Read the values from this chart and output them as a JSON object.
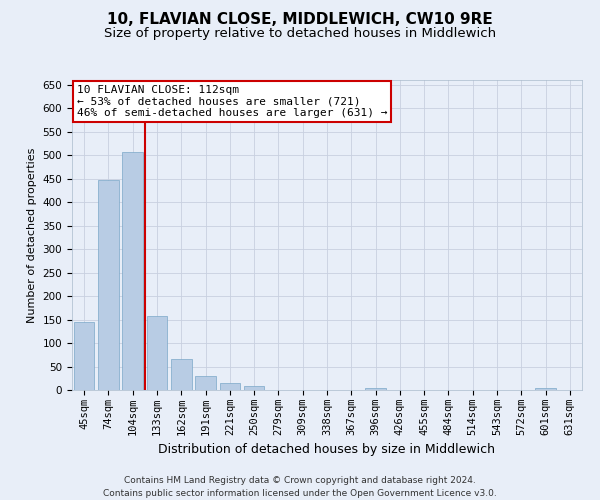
{
  "title": "10, FLAVIAN CLOSE, MIDDLEWICH, CW10 9RE",
  "subtitle": "Size of property relative to detached houses in Middlewich",
  "xlabel": "Distribution of detached houses by size in Middlewich",
  "ylabel": "Number of detached properties",
  "categories": [
    "45sqm",
    "74sqm",
    "104sqm",
    "133sqm",
    "162sqm",
    "191sqm",
    "221sqm",
    "250sqm",
    "279sqm",
    "309sqm",
    "338sqm",
    "367sqm",
    "396sqm",
    "426sqm",
    "455sqm",
    "484sqm",
    "514sqm",
    "543sqm",
    "572sqm",
    "601sqm",
    "631sqm"
  ],
  "values": [
    145,
    448,
    506,
    157,
    66,
    30,
    14,
    8,
    0,
    0,
    0,
    0,
    5,
    0,
    0,
    0,
    0,
    0,
    0,
    5,
    0
  ],
  "bar_color": "#b8cce4",
  "bar_edge_color": "#7ba7c9",
  "annotation_line1": "10 FLAVIAN CLOSE: 112sqm",
  "annotation_line2": "← 53% of detached houses are smaller (721)",
  "annotation_line3": "46% of semi-detached houses are larger (631) →",
  "annotation_box_color": "#ffffff",
  "annotation_box_edge_color": "#cc0000",
  "vline_x_index": 2.5,
  "vline_color": "#cc0000",
  "ylim": [
    0,
    660
  ],
  "yticks": [
    0,
    50,
    100,
    150,
    200,
    250,
    300,
    350,
    400,
    450,
    500,
    550,
    600,
    650
  ],
  "grid_color": "#c8d0e0",
  "footer_text": "Contains HM Land Registry data © Crown copyright and database right 2024.\nContains public sector information licensed under the Open Government Licence v3.0.",
  "background_color": "#e8eef8",
  "title_fontsize": 11,
  "subtitle_fontsize": 9.5,
  "xlabel_fontsize": 9,
  "ylabel_fontsize": 8,
  "tick_fontsize": 7.5,
  "footer_fontsize": 6.5,
  "ann_fontsize": 8
}
